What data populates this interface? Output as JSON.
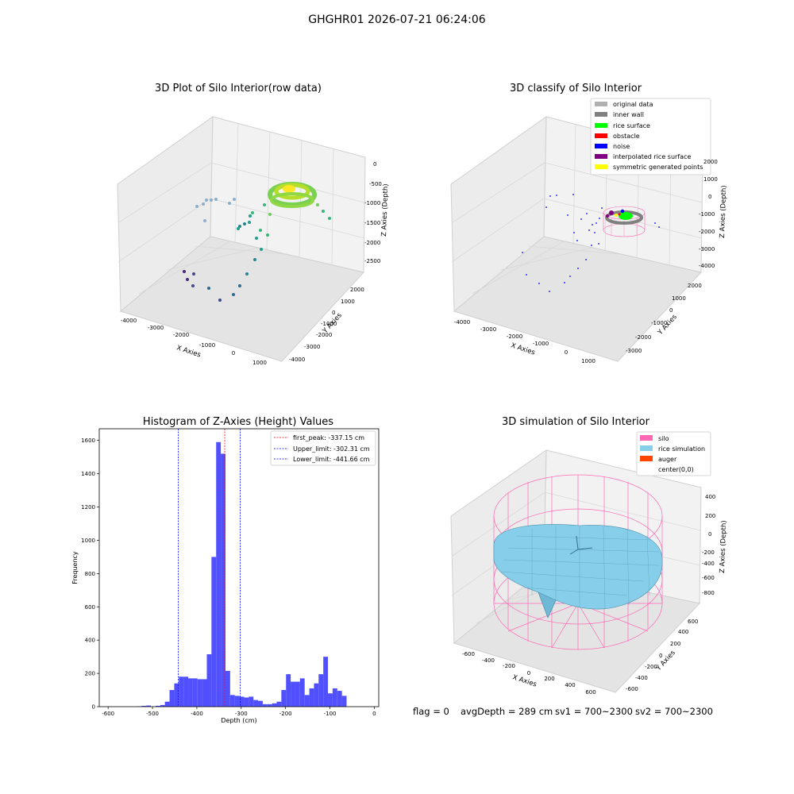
{
  "suptitle": "GHGHR01 2026-07-21 06:24:06",
  "footer": {
    "flag": "flag = 0",
    "avg": "avgDepth = 289 cm",
    "sv1": "sv1 = 700~2300",
    "sv2": "sv2 = 700~2300"
  },
  "panel1": {
    "title": "3D Plot of Silo Interior(row data)",
    "xlabel": "X Axies",
    "ylabel": "Y Axies",
    "zlabel": "Z Axies (Depth)",
    "xticks": [
      "-4000",
      "-3000",
      "-2000",
      "-1000",
      "0",
      "1000"
    ],
    "yticks": [
      "-4000",
      "-3000",
      "-2000",
      "-1000",
      "0",
      "1000",
      "2000"
    ],
    "zticks": [
      "0",
      "-500",
      "-1000",
      "-1500",
      "-2000",
      "-2500"
    ]
  },
  "panel2": {
    "title": "3D classify of Silo Interior",
    "xlabel": "X Axies",
    "ylabel": "Y Axies",
    "zlabel": "Z Axies (Depth)",
    "xticks": [
      "-4000",
      "-3000",
      "-2000",
      "-1000",
      "0",
      "1000"
    ],
    "yticks": [
      "-3000",
      "-2000",
      "-1000",
      "0",
      "1000",
      "2000"
    ],
    "zticks": [
      "2000",
      "1000",
      "0",
      "-1000",
      "-2000",
      "-3000",
      "-4000"
    ],
    "legend": [
      {
        "label": "original data",
        "color": "#b0b0b0"
      },
      {
        "label": "inner wall",
        "color": "#808080"
      },
      {
        "label": "rice surface",
        "color": "#00ff00"
      },
      {
        "label": "obstacle",
        "color": "#ff0000"
      },
      {
        "label": "noise",
        "color": "#0000ff"
      },
      {
        "label": "interpolated rice surface",
        "color": "#800080"
      },
      {
        "label": "symmetric generated points",
        "color": "#ffff00"
      }
    ]
  },
  "panel4": {
    "title": "3D simulation of Silo Interior",
    "xlabel": "X Axies",
    "ylabel": "Y Axies",
    "zlabel": "Z Axies (Depth)",
    "xticks": [
      "-600",
      "-400",
      "-200",
      "0",
      "200",
      "400",
      "600"
    ],
    "yticks": [
      "-600",
      "-400",
      "-200",
      "0",
      "200",
      "400",
      "600"
    ],
    "zticks": [
      "400",
      "200",
      "0",
      "-200",
      "-400",
      "-600",
      "-800"
    ],
    "legend": [
      {
        "label": "silo",
        "color": "#ff69b4"
      },
      {
        "label": "rice simulation",
        "color": "#87ceeb"
      },
      {
        "label": "auger",
        "color": "#ff4500"
      },
      {
        "label": "center(0,0)",
        "color": ""
      }
    ]
  },
  "chart_data": [
    {
      "type": "bar",
      "title": "Histogram of Z-Axies (Height) Values",
      "xlabel": "Depth (cm)",
      "ylabel": "Frequency",
      "xlim": [
        -620,
        10
      ],
      "ylim": [
        0,
        1670
      ],
      "xticks": [
        -600,
        -500,
        -400,
        -300,
        -200,
        -100,
        0
      ],
      "yticks": [
        0,
        200,
        400,
        600,
        800,
        1000,
        1200,
        1400,
        1600
      ],
      "bin_width": 10.5,
      "bins_left": [
        -535,
        -524.5,
        -514,
        -503.5,
        -493,
        -482.5,
        -472,
        -461.5,
        -451,
        -440.5,
        -430,
        -419.5,
        -409,
        -398.5,
        -388,
        -377.5,
        -367,
        -356.5,
        -346,
        -335.5,
        -325,
        -314.5,
        -304,
        -293.5,
        -283,
        -272.5,
        -262,
        -251.5,
        -241,
        -230.5,
        -220,
        -209.5,
        -199,
        -188.5,
        -178,
        -167.5,
        -157,
        -146.5,
        -136,
        -125.5,
        -115,
        -104.5,
        -94,
        -83.5,
        -73,
        -62.5,
        -52,
        -41.5,
        -31,
        -20.5,
        -10
      ],
      "values": [
        2,
        5,
        7,
        0,
        5,
        10,
        30,
        100,
        140,
        180,
        180,
        170,
        170,
        165,
        165,
        315,
        900,
        1590,
        1520,
        215,
        70,
        65,
        60,
        55,
        60,
        40,
        35,
        15,
        15,
        20,
        30,
        100,
        195,
        150,
        150,
        170,
        70,
        110,
        140,
        195,
        300,
        80,
        110,
        95,
        65,
        0,
        0,
        0,
        0,
        0,
        0
      ],
      "legend_placement": "top-right",
      "lines": [
        {
          "name": "first_peak: -337.15 cm",
          "x": -337.15,
          "color": "#ff0000"
        },
        {
          "name": "Upper_limit: -302.31 cm",
          "x": -302.31,
          "color": "#0000ff"
        },
        {
          "name": "Lower_limit: -441.66 cm",
          "x": -441.66,
          "color": "#0000ff"
        }
      ]
    }
  ]
}
